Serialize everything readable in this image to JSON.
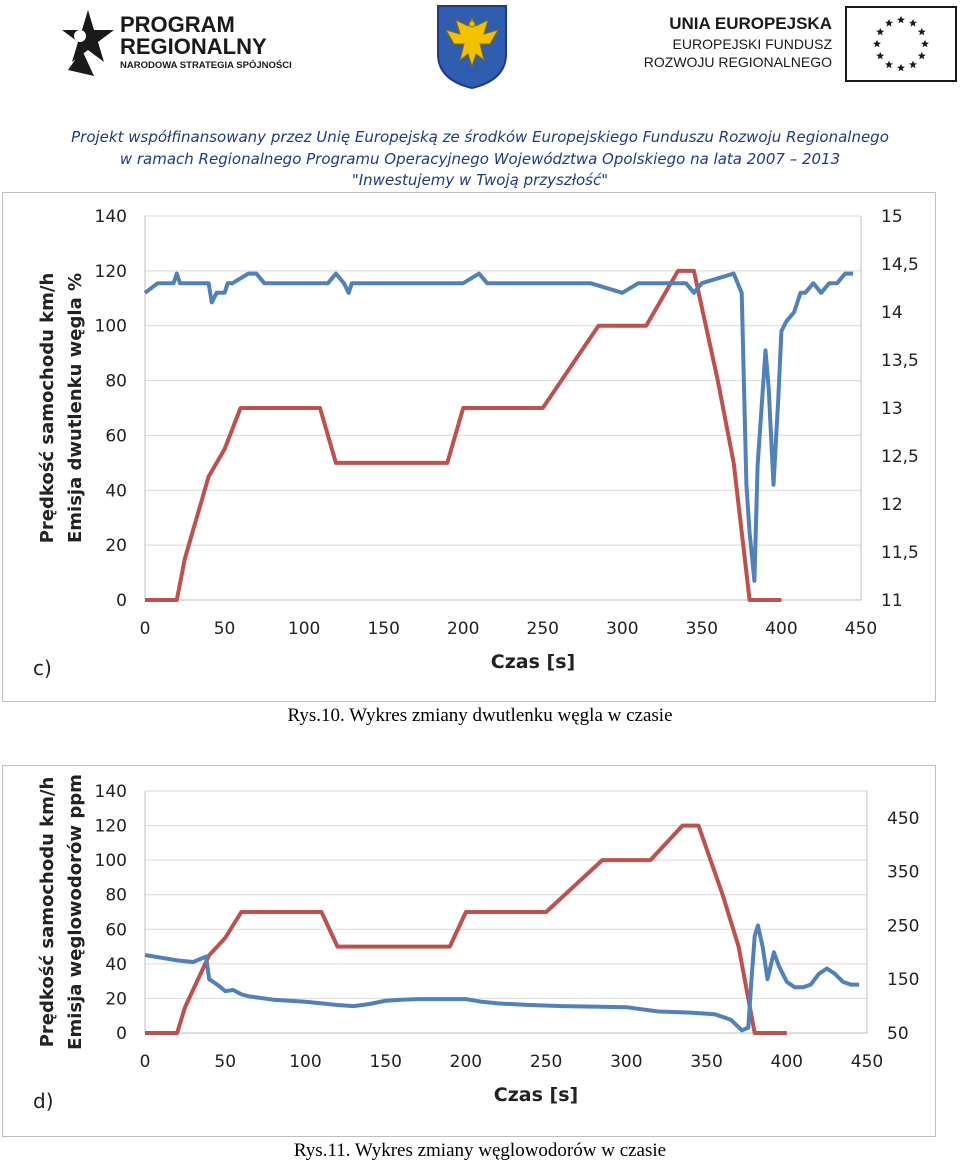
{
  "header": {
    "program_logo": {
      "line1": "PROGRAM",
      "line2": "REGIONALNY",
      "line3": "NARODOWA STRATEGIA SPÓJNOŚCI"
    },
    "eu_logo": {
      "line1": "UNIA EUROPEJSKA",
      "line2": "EUROPEJSKI FUNDUSZ",
      "line3": "ROZWOJU REGIONALNEGO"
    },
    "project_lines": [
      "Projekt współfinansowany przez Unię Europejską ze środków Europejskiego Funduszu Rozwoju Regionalnego",
      "w ramach Regionalnego Programu Operacyjnego Województwa Opolskiego na lata 2007 – 2013",
      "\"Inwestujemy w Twoją przyszłość\""
    ],
    "colors": {
      "brand_blue": "#1f3a86",
      "crest_gold": "#f2c200",
      "eu_blue": "#1f3a86"
    }
  },
  "captions": {
    "fig10": "Rys.10. Wykres zmiany dwutlenku węgla w czasie",
    "fig11": "Rys.11. Wykres zmiany węglowodorów w czasie"
  },
  "chart_data": [
    {
      "type": "line",
      "panel_label": "c)",
      "xlabel": "Czas [s]",
      "ylabel_left": "Prędkość samochodu     km/h",
      "ylabel_left2": "Emisja dwutlenku węgla     %",
      "xlim": [
        0,
        450
      ],
      "ylim_left": [
        0,
        140
      ],
      "ylim_right": [
        11,
        15
      ],
      "x_ticks": [
        "0",
        "50",
        "100",
        "150",
        "200",
        "250",
        "300",
        "350",
        "400",
        "450"
      ],
      "y_left_ticks": [
        "0",
        "20",
        "40",
        "60",
        "80",
        "100",
        "120",
        "140"
      ],
      "y_right_ticks": [
        "11",
        "11,5",
        "12",
        "12,5",
        "13",
        "13,5",
        "14",
        "14,5",
        "15"
      ],
      "colors": {
        "speed": "#c0504d",
        "emission": "#4f81bd",
        "grid": "#d9d9d9"
      },
      "series": [
        {
          "name": "speed",
          "axis": "left",
          "x": [
            0,
            20,
            25,
            30,
            35,
            40,
            45,
            50,
            60,
            110,
            120,
            190,
            200,
            250,
            285,
            315,
            335,
            345,
            360,
            370,
            380,
            400
          ],
          "y": [
            0,
            0,
            15,
            25,
            35,
            45,
            50,
            55,
            70,
            70,
            50,
            50,
            70,
            70,
            100,
            100,
            120,
            120,
            80,
            50,
            0,
            0
          ]
        },
        {
          "name": "emission",
          "axis": "right",
          "x": [
            0,
            8,
            18,
            20,
            22,
            40,
            42,
            45,
            48,
            50,
            52,
            55,
            65,
            70,
            75,
            80,
            115,
            120,
            125,
            128,
            130,
            200,
            210,
            215,
            220,
            225,
            280,
            300,
            310,
            330,
            340,
            345,
            350,
            370,
            375,
            378,
            380,
            383,
            385,
            390,
            392,
            395,
            398,
            400,
            403,
            408,
            412,
            415,
            420,
            425,
            430,
            435,
            440,
            445
          ],
          "y": [
            14.2,
            14.3,
            14.3,
            14.4,
            14.3,
            14.3,
            14.1,
            14.2,
            14.2,
            14.2,
            14.3,
            14.3,
            14.4,
            14.4,
            14.3,
            14.3,
            14.3,
            14.4,
            14.3,
            14.2,
            14.3,
            14.3,
            14.4,
            14.3,
            14.3,
            14.3,
            14.3,
            14.2,
            14.3,
            14.3,
            14.3,
            14.2,
            14.3,
            14.4,
            14.2,
            12.2,
            11.7,
            11.2,
            12.4,
            13.6,
            13.2,
            12.2,
            13.1,
            13.8,
            13.9,
            14.0,
            14.2,
            14.2,
            14.3,
            14.2,
            14.3,
            14.3,
            14.4,
            14.4
          ]
        }
      ]
    },
    {
      "type": "line",
      "panel_label": "d)",
      "xlabel": "Czas [s]",
      "ylabel_left": "Prędkość samochodu     km/h",
      "ylabel_left2": "Emisja węglowodorów     ppm",
      "xlim": [
        0,
        450
      ],
      "ylim_left": [
        0,
        140
      ],
      "ylim_right": [
        50,
        500
      ],
      "x_ticks": [
        "0",
        "50",
        "100",
        "150",
        "200",
        "250",
        "300",
        "350",
        "400",
        "450"
      ],
      "y_left_ticks": [
        "0",
        "20",
        "40",
        "60",
        "80",
        "100",
        "120",
        "140"
      ],
      "y_right_ticks": [
        "50",
        "150",
        "250",
        "350",
        "450"
      ],
      "colors": {
        "speed": "#c0504d",
        "emission": "#4f81bd",
        "grid": "#d9d9d9"
      },
      "series": [
        {
          "name": "speed",
          "axis": "left",
          "x": [
            0,
            20,
            25,
            30,
            35,
            40,
            45,
            50,
            60,
            110,
            120,
            190,
            200,
            250,
            285,
            315,
            335,
            345,
            360,
            370,
            380,
            400
          ],
          "y": [
            0,
            0,
            15,
            25,
            35,
            45,
            50,
            55,
            70,
            70,
            50,
            50,
            70,
            70,
            100,
            100,
            120,
            120,
            80,
            50,
            0,
            0
          ]
        },
        {
          "name": "emission",
          "axis": "right",
          "x": [
            0,
            10,
            20,
            30,
            38,
            40,
            45,
            50,
            55,
            60,
            65,
            70,
            80,
            90,
            100,
            110,
            120,
            130,
            140,
            150,
            160,
            170,
            200,
            210,
            220,
            240,
            260,
            280,
            300,
            320,
            340,
            355,
            365,
            372,
            376,
            378,
            380,
            382,
            385,
            388,
            392,
            395,
            400,
            405,
            410,
            415,
            420,
            425,
            430,
            435,
            440,
            445
          ],
          "y": [
            195,
            190,
            185,
            182,
            192,
            150,
            140,
            128,
            130,
            122,
            118,
            116,
            112,
            110,
            108,
            105,
            102,
            100,
            104,
            110,
            112,
            113,
            113,
            108,
            105,
            102,
            100,
            99,
            98,
            90,
            88,
            85,
            75,
            55,
            60,
            150,
            230,
            250,
            210,
            150,
            200,
            175,
            145,
            135,
            135,
            140,
            160,
            170,
            160,
            145,
            140,
            140
          ]
        }
      ]
    }
  ]
}
